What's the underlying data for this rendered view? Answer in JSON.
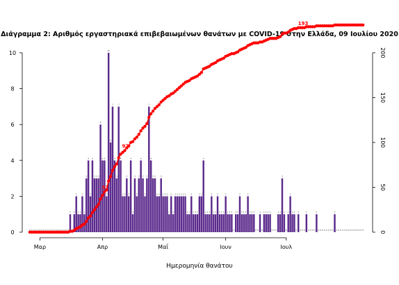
{
  "chart_data": {
    "type": "bar+line",
    "title": "Διάγραμμα 2: Αριθμός εργαστηριακά επιβεβαιωμένων θανάτων με COVID-19 στην Ελλάδα, 09 Ιουλίου 2020",
    "xlabel": "Ημερομηνία θανάτου",
    "x_start": "2020-02-25",
    "x_ticks": [
      {
        "date": "2020-03-01",
        "label": "Μαρ"
      },
      {
        "date": "2020-04-01",
        "label": "Απρ"
      },
      {
        "date": "2020-05-01",
        "label": "Μαΐ"
      },
      {
        "date": "2020-06-01",
        "label": "Ιουν"
      },
      {
        "date": "2020-07-01",
        "label": "Ιουλ"
      }
    ],
    "y_left": {
      "ticks": [
        0,
        2,
        4,
        6,
        8,
        10
      ],
      "lim": [
        0,
        10.5
      ]
    },
    "y_right": {
      "ticks": [
        0,
        50,
        100,
        150,
        200
      ],
      "lim": [
        0,
        210
      ]
    },
    "series": [
      {
        "type": "bar",
        "axis": "left",
        "color": "#5b2a8c",
        "values": [
          0,
          0,
          0,
          0,
          0,
          0,
          0,
          0,
          0,
          0,
          0,
          0,
          0,
          0,
          0,
          0,
          0,
          0,
          0,
          0,
          1,
          0,
          1,
          2,
          1,
          1,
          2,
          1,
          3,
          4,
          2,
          4,
          3,
          3,
          3,
          6,
          4,
          4,
          2,
          10,
          5,
          7,
          4,
          3,
          7,
          4,
          2,
          2,
          3,
          2,
          4,
          1,
          3,
          2,
          3,
          4,
          3,
          2,
          3,
          7,
          4,
          3,
          3,
          2,
          2,
          3,
          2,
          2,
          2,
          1,
          2,
          1,
          2,
          2,
          2,
          2,
          2,
          2,
          1,
          1,
          2,
          1,
          1,
          1,
          2,
          2,
          4,
          1,
          1,
          1,
          2,
          1,
          1,
          2,
          1,
          1,
          1,
          2,
          1,
          1,
          1,
          0,
          1,
          1,
          2,
          1,
          1,
          1,
          2,
          1,
          1,
          1,
          0,
          0,
          1,
          0,
          1,
          1,
          1,
          1,
          0,
          0,
          0,
          1,
          1,
          3,
          1,
          0,
          1,
          2,
          1,
          1,
          0,
          1,
          0,
          0,
          0,
          1,
          0,
          0,
          0,
          0,
          1,
          0,
          0,
          0,
          0,
          0,
          0,
          0,
          0,
          1,
          0,
          0,
          0,
          0,
          0,
          0,
          0,
          0,
          0,
          0,
          0,
          0,
          0,
          0
        ],
        "label_value": 10,
        "label_index": 39
      },
      {
        "type": "line",
        "axis": "right",
        "color": "#ff0000",
        "labels": [
          {
            "index": 37,
            "text": "52"
          },
          {
            "index": 47,
            "text": "97"
          },
          {
            "index": 135,
            "text": "193"
          }
        ]
      }
    ]
  }
}
